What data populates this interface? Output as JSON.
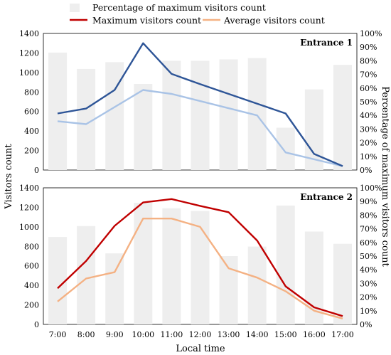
{
  "chart_data": {
    "type": "bar+line",
    "legend": {
      "placement": "top",
      "entries": [
        {
          "label": "Percentage of maximum visitors count",
          "kind": "bar",
          "color": "#eeeeee"
        },
        {
          "label": "Maximum visitors count",
          "kind": "line",
          "color_ref": "max"
        },
        {
          "label": "Average visitors count",
          "kind": "line",
          "color_ref": "avg"
        }
      ]
    },
    "categories": [
      "7:00",
      "8:00",
      "9:00",
      "10:00",
      "11:00",
      "12:00",
      "13:00",
      "14:00",
      "15:00",
      "16:00",
      "17:00"
    ],
    "xlabel": "Local time",
    "ylabel": "Visitors count",
    "y2label": "Percentage of maximum visitors count",
    "ylim": [
      0,
      1400
    ],
    "y2lim": [
      0,
      100
    ],
    "yticks": [
      "0",
      "200",
      "400",
      "600",
      "800",
      "1000",
      "1200",
      "1400"
    ],
    "y2ticks": [
      "0%",
      "10%",
      "20%",
      "30%",
      "40%",
      "50%",
      "60%",
      "70%",
      "80%",
      "90%",
      "100%"
    ],
    "bar_color": "#eeeeee",
    "panels": [
      {
        "title": "Entrance 1",
        "max_color": "#2e5597",
        "avg_color": "#a9c3e6",
        "percent": [
          86,
          74,
          79,
          63,
          80,
          80,
          81,
          82,
          31,
          59,
          77
        ],
        "max": [
          580,
          630,
          820,
          1300,
          985,
          880,
          780,
          680,
          580,
          165,
          40
        ],
        "avg": [
          500,
          470,
          null,
          820,
          780,
          null,
          null,
          560,
          180,
          null,
          40
        ]
      },
      {
        "title": "Entrance 2",
        "max_color": "#c00000",
        "avg_color": "#f4b183",
        "percent": [
          64,
          72,
          52,
          89,
          85,
          83,
          50,
          57,
          87,
          68,
          59
        ],
        "max": [
          370,
          650,
          1010,
          1250,
          1285,
          1215,
          1150,
          860,
          390,
          175,
          85
        ],
        "avg": [
          235,
          470,
          535,
          1085,
          1085,
          1000,
          575,
          480,
          340,
          140,
          60
        ]
      }
    ]
  }
}
